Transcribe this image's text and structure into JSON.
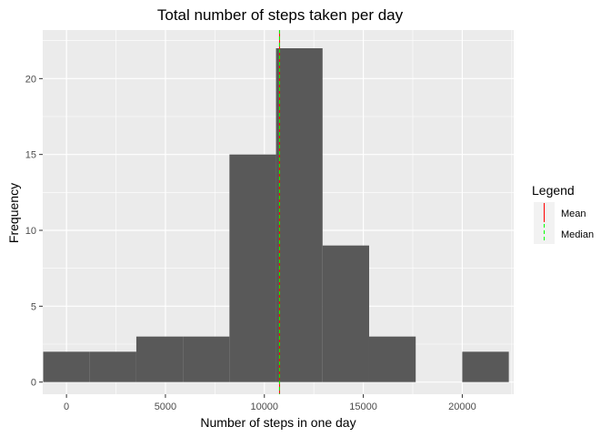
{
  "chart_data": {
    "type": "bar",
    "title": "Total number of steps taken per day",
    "xlabel": "Number of steps in one day",
    "ylabel": "Frequency",
    "xlim": [
      -1200,
      22600
    ],
    "ylim": [
      -0.8,
      23.2
    ],
    "x_ticks": [
      0,
      5000,
      10000,
      15000,
      20000
    ],
    "y_ticks": [
      0,
      5,
      10,
      15,
      20
    ],
    "grid": true,
    "bin_width": 2353,
    "bins": [
      {
        "start": -1176,
        "end": 1176,
        "count": 2
      },
      {
        "start": 1176,
        "end": 3529,
        "count": 2
      },
      {
        "start": 3529,
        "end": 5882,
        "count": 3
      },
      {
        "start": 5882,
        "end": 8235,
        "count": 3
      },
      {
        "start": 8235,
        "end": 10588,
        "count": 15
      },
      {
        "start": 10588,
        "end": 12941,
        "count": 22
      },
      {
        "start": 12941,
        "end": 15294,
        "count": 9
      },
      {
        "start": 15294,
        "end": 17647,
        "count": 3
      },
      {
        "start": 17647,
        "end": 20000,
        "count": 0
      },
      {
        "start": 20000,
        "end": 22353,
        "count": 2
      }
    ],
    "bar_color": "#595959",
    "mean": 10766.19,
    "median": 10765,
    "legend": {
      "title": "Legend",
      "position": "right",
      "entries": [
        {
          "label": "Mean",
          "color": "#ff0000",
          "linetype": "solid"
        },
        {
          "label": "Median",
          "color": "#00ff00",
          "linetype": "dashed"
        }
      ]
    },
    "panel_background": "#ebebeb",
    "grid_color": "#ffffff"
  }
}
